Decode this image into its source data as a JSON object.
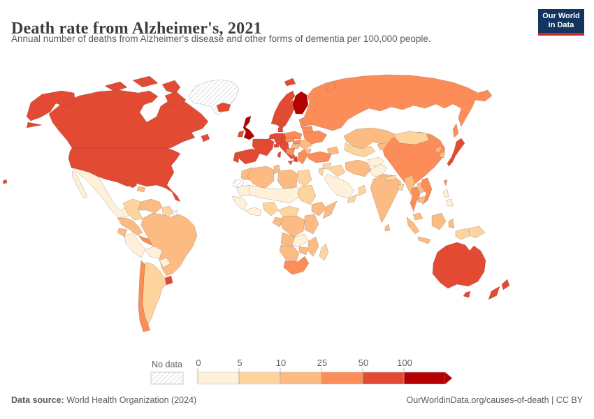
{
  "header": {
    "title": "Death rate from Alzheimer's, 2021",
    "subtitle": "Annual number of deaths from Alzheimer's disease and other forms of dementia per 100,000 people."
  },
  "logo": {
    "line1": "Our World",
    "line2": "in Data",
    "bg_color": "#12355f",
    "bar_color": "#cc2a25"
  },
  "legend": {
    "no_data_label": "No data",
    "ticks": [
      "0",
      "5",
      "10",
      "25",
      "50",
      "100"
    ],
    "colors": [
      "#fef0d9",
      "#fdd49e",
      "#fdbb84",
      "#fc8d59",
      "#e34a33",
      "#b30000"
    ],
    "hatch_color": "#c8c8c8"
  },
  "footer": {
    "source_label": "Data source:",
    "source_text": " World Health Organization (2024)",
    "right_text": "OurWorldinData.org/causes-of-death | CC BY"
  },
  "chart_data": {
    "type": "heatmap",
    "subtype": "choropleth-world-map",
    "title": "Death rate from Alzheimer's, 2021",
    "unit": "deaths per 100,000 people",
    "year": "2021",
    "bin_edges": [
      0,
      5,
      10,
      25,
      50,
      100
    ],
    "bin_labels": [
      "0-5",
      "5-10",
      "10-25",
      "25-50",
      "50-100",
      "100+"
    ],
    "bin_colors": [
      "#fef0d9",
      "#fdd49e",
      "#fdbb84",
      "#fc8d59",
      "#e34a33",
      "#b30000"
    ],
    "no_data_regions": [
      "greenland",
      "western-sahara",
      "french-guiana"
    ],
    "regions": [
      {
        "id": "greenland",
        "bin": "nodata"
      },
      {
        "id": "western-sahara",
        "bin": "nodata"
      },
      {
        "id": "french-guiana",
        "bin": "nodata"
      },
      {
        "id": "canada",
        "bin": 4
      },
      {
        "id": "canada-arctic-1",
        "bin": 4
      },
      {
        "id": "canada-arctic-2",
        "bin": 4
      },
      {
        "id": "canada-arctic-3",
        "bin": 4
      },
      {
        "id": "baffin",
        "bin": 4
      },
      {
        "id": "newfoundland",
        "bin": 4
      },
      {
        "id": "alaska",
        "bin": 4
      },
      {
        "id": "usa",
        "bin": 4
      },
      {
        "id": "hawaii",
        "bin": 4
      },
      {
        "id": "mexico",
        "bin": 0
      },
      {
        "id": "central-america",
        "bin": 2
      },
      {
        "id": "costa-panama",
        "bin": 3
      },
      {
        "id": "cuba",
        "bin": 4
      },
      {
        "id": "hispaniola",
        "bin": 2
      },
      {
        "id": "colombia",
        "bin": 1
      },
      {
        "id": "venezuela",
        "bin": 2
      },
      {
        "id": "guyana-suriname",
        "bin": 1
      },
      {
        "id": "ecuador",
        "bin": 2
      },
      {
        "id": "peru",
        "bin": 0
      },
      {
        "id": "brazil",
        "bin": 2
      },
      {
        "id": "bolivia",
        "bin": 0
      },
      {
        "id": "paraguay",
        "bin": 0
      },
      {
        "id": "uruguay",
        "bin": 4
      },
      {
        "id": "argentina",
        "bin": 1
      },
      {
        "id": "chile",
        "bin": 3
      },
      {
        "id": "morocco",
        "bin": 2
      },
      {
        "id": "algeria",
        "bin": 2
      },
      {
        "id": "tunisia",
        "bin": 2
      },
      {
        "id": "libya",
        "bin": 2
      },
      {
        "id": "egypt",
        "bin": 1
      },
      {
        "id": "mauritania",
        "bin": 0
      },
      {
        "id": "sahel",
        "bin": 0
      },
      {
        "id": "senegal-guinea",
        "bin": 0
      },
      {
        "id": "ivory-ghana",
        "bin": 0
      },
      {
        "id": "nigeria",
        "bin": 1
      },
      {
        "id": "sudan",
        "bin": 1
      },
      {
        "id": "ethiopia",
        "bin": 2
      },
      {
        "id": "somalia",
        "bin": 2
      },
      {
        "id": "cameroon-car",
        "bin": 1
      },
      {
        "id": "drc",
        "bin": 2
      },
      {
        "id": "gabon-congo",
        "bin": 2
      },
      {
        "id": "kenya-tanzania",
        "bin": 2
      },
      {
        "id": "angola",
        "bin": 2
      },
      {
        "id": "zambia",
        "bin": 0
      },
      {
        "id": "mozambique",
        "bin": 2
      },
      {
        "id": "zimbabwe",
        "bin": 2
      },
      {
        "id": "namibia-botswana",
        "bin": 2
      },
      {
        "id": "south-africa",
        "bin": 3
      },
      {
        "id": "madagascar",
        "bin": 1
      },
      {
        "id": "iceland",
        "bin": 4
      },
      {
        "id": "uk",
        "bin": 5
      },
      {
        "id": "ireland",
        "bin": 4
      },
      {
        "id": "norway",
        "bin": 4
      },
      {
        "id": "svalbard",
        "bin": 4
      },
      {
        "id": "sweden",
        "bin": 4
      },
      {
        "id": "finland",
        "bin": 5
      },
      {
        "id": "denmark",
        "bin": 4
      },
      {
        "id": "baltics",
        "bin": 3
      },
      {
        "id": "belarus",
        "bin": 3
      },
      {
        "id": "poland",
        "bin": 3
      },
      {
        "id": "germany",
        "bin": 4
      },
      {
        "id": "netherlands-belgium",
        "bin": 4
      },
      {
        "id": "france",
        "bin": 4
      },
      {
        "id": "spain",
        "bin": 4
      },
      {
        "id": "portugal",
        "bin": 4
      },
      {
        "id": "italy",
        "bin": 4
      },
      {
        "id": "sicily",
        "bin": 4
      },
      {
        "id": "sardinia",
        "bin": 4
      },
      {
        "id": "switzerland",
        "bin": 4
      },
      {
        "id": "austria",
        "bin": 4
      },
      {
        "id": "czech",
        "bin": 3
      },
      {
        "id": "slovakia",
        "bin": 3
      },
      {
        "id": "hungary",
        "bin": 2
      },
      {
        "id": "romania",
        "bin": 2
      },
      {
        "id": "bulgaria",
        "bin": 2
      },
      {
        "id": "west-balkans",
        "bin": 3
      },
      {
        "id": "albania",
        "bin": 4
      },
      {
        "id": "greece",
        "bin": 3
      },
      {
        "id": "ukraine",
        "bin": 3
      },
      {
        "id": "russia",
        "bin": 3
      },
      {
        "id": "novaya-zemlya",
        "bin": 3
      },
      {
        "id": "sakhalin",
        "bin": 3
      },
      {
        "id": "kazakhstan",
        "bin": 2
      },
      {
        "id": "uzbek-turkmen",
        "bin": 1
      },
      {
        "id": "kyrgyz-tajik",
        "bin": 2
      },
      {
        "id": "caucasus",
        "bin": 2
      },
      {
        "id": "turkey",
        "bin": 3
      },
      {
        "id": "syria",
        "bin": 1
      },
      {
        "id": "israel-jordan",
        "bin": 1
      },
      {
        "id": "iraq",
        "bin": 1
      },
      {
        "id": "saudi-arabia",
        "bin": 0
      },
      {
        "id": "yemen",
        "bin": 1
      },
      {
        "id": "oman",
        "bin": 1
      },
      {
        "id": "iran",
        "bin": 2
      },
      {
        "id": "afghanistan",
        "bin": 0
      },
      {
        "id": "pakistan",
        "bin": 0
      },
      {
        "id": "china",
        "bin": 3
      },
      {
        "id": "mongolia",
        "bin": 1
      },
      {
        "id": "north-korea",
        "bin": 2
      },
      {
        "id": "south-korea",
        "bin": 2
      },
      {
        "id": "japan",
        "bin": 4
      },
      {
        "id": "taiwan",
        "bin": 3
      },
      {
        "id": "india",
        "bin": 2
      },
      {
        "id": "nepal",
        "bin": 1
      },
      {
        "id": "bangladesh",
        "bin": 1
      },
      {
        "id": "sri-lanka",
        "bin": 2
      },
      {
        "id": "myanmar",
        "bin": 2
      },
      {
        "id": "thailand",
        "bin": 3
      },
      {
        "id": "laos",
        "bin": 2
      },
      {
        "id": "vietnam",
        "bin": 3
      },
      {
        "id": "cambodia",
        "bin": 2
      },
      {
        "id": "malaysia",
        "bin": 2
      },
      {
        "id": "sumatra",
        "bin": 2
      },
      {
        "id": "java",
        "bin": 2
      },
      {
        "id": "borneo",
        "bin": 2
      },
      {
        "id": "sulawesi",
        "bin": 2
      },
      {
        "id": "papua-indonesia",
        "bin": 1
      },
      {
        "id": "png",
        "bin": 1
      },
      {
        "id": "philippines",
        "bin": 0
      },
      {
        "id": "australia",
        "bin": 4
      },
      {
        "id": "tasmania",
        "bin": 4
      },
      {
        "id": "nz-north",
        "bin": 4
      },
      {
        "id": "nz-south",
        "bin": 4
      }
    ]
  }
}
